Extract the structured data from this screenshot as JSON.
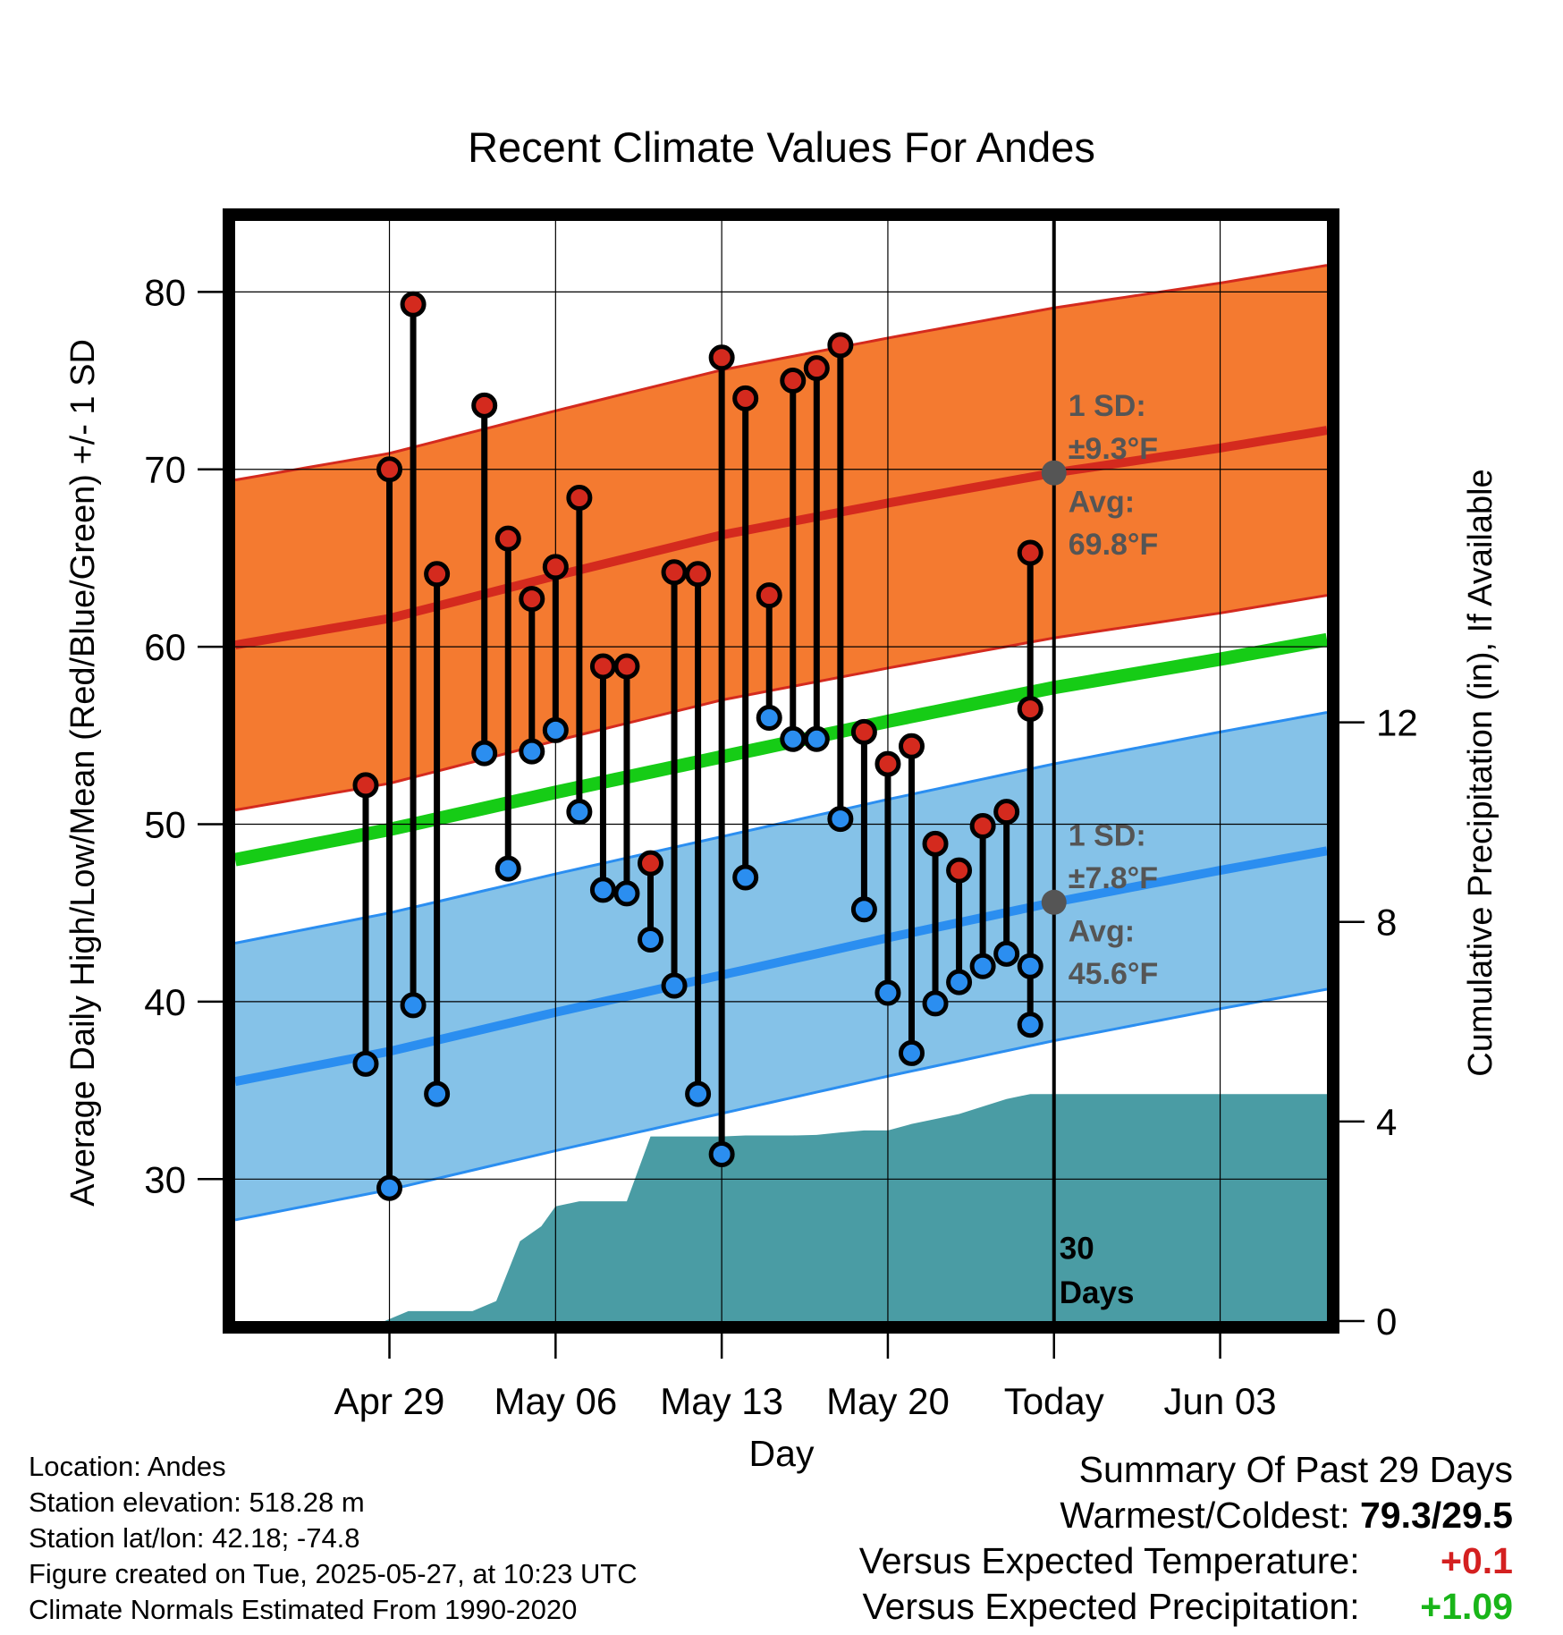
{
  "chart_data": {
    "type": "line",
    "title": "Recent Climate Values For Andes",
    "xlabel": "Day",
    "ylabel_left": "Average Daily High/Low/Mean (Red/Blue/Green) +/- 1 SD",
    "ylabel_right": "Cumulative Precipitation (in), If Available",
    "x_range_day_of_year": [
      112.5,
      158.5
    ],
    "ylim_left": [
      22,
      84
    ],
    "ylim_right": [
      0,
      22.05
    ],
    "x_ticks": [
      {
        "label": "Apr 29",
        "day": 119
      },
      {
        "label": "May 06",
        "day": 126
      },
      {
        "label": "May 13",
        "day": 133
      },
      {
        "label": "May 20",
        "day": 140
      },
      {
        "label": "Today",
        "day": 147
      },
      {
        "label": "Jun 03",
        "day": 154
      }
    ],
    "y_ticks_left": [
      30,
      40,
      50,
      60,
      70,
      80
    ],
    "y_ticks_right": [
      0,
      4,
      8,
      12
    ],
    "grid": true,
    "today_day": 147,
    "today_label_1": "30",
    "today_label_2": "Days",
    "normals": {
      "high_mean": {
        "day": [
          112.5,
          119,
          126,
          133,
          140,
          147,
          154,
          158.5
        ],
        "value": [
          60.1,
          61.6,
          64.0,
          66.3,
          68.1,
          69.8,
          71.2,
          72.2
        ]
      },
      "high_sd": 9.3,
      "low_mean": {
        "day": [
          112.5,
          119,
          126,
          133,
          140,
          147,
          154,
          158.5
        ],
        "value": [
          35.5,
          37.2,
          39.4,
          41.5,
          43.6,
          45.6,
          47.4,
          48.5
        ]
      },
      "low_sd": 7.8,
      "daily_mean": {
        "day": [
          112.5,
          119,
          126,
          133,
          140,
          147,
          154,
          158.5
        ],
        "value": [
          48.0,
          49.7,
          51.8,
          53.8,
          55.8,
          57.7,
          59.3,
          60.4
        ]
      }
    },
    "daily_observations": {
      "day": [
        118,
        119,
        120,
        121,
        123,
        124,
        125,
        126,
        127,
        128,
        129,
        130,
        131,
        132,
        133,
        134,
        135,
        136,
        137,
        138,
        139,
        140,
        141,
        142,
        143,
        144,
        145,
        146
      ],
      "high": [
        52.2,
        70.0,
        79.3,
        64.1,
        73.6,
        66.1,
        62.7,
        64.5,
        68.4,
        58.9,
        58.9,
        47.8,
        64.2,
        64.1,
        76.3,
        74.0,
        62.9,
        75.0,
        75.7,
        77.0,
        55.2,
        53.4,
        54.4,
        48.9,
        47.4,
        49.9,
        50.7,
        56.5
      ],
      "low": [
        36.5,
        29.5,
        39.8,
        34.8,
        54.0,
        47.5,
        54.1,
        55.3,
        50.7,
        46.3,
        46.1,
        43.5,
        40.9,
        34.8,
        31.4,
        47.0,
        56.0,
        54.8,
        54.8,
        50.3,
        45.2,
        40.5,
        37.1,
        39.9,
        41.1,
        42.0,
        42.7,
        42.0
      ]
    },
    "daily_observations_extra": {
      "day": 147,
      "high": 65.3,
      "low": 38.7
    },
    "cumulative_precip": {
      "day": [
        112.5,
        118.8,
        119.8,
        122.5,
        123.5,
        124.5,
        125.4,
        126.0,
        127.0,
        128.0,
        129.0,
        130.0,
        131.0,
        132.0,
        133.0,
        134.0,
        135.0,
        136.0,
        137.0,
        138.0,
        139.0,
        140.0,
        141.0,
        142.0,
        143.0,
        144.0,
        145.0,
        146.0,
        147.0,
        158.5
      ],
      "value": [
        0,
        0,
        0.2,
        0.2,
        0.4,
        1.6,
        1.9,
        2.3,
        2.4,
        2.4,
        2.4,
        3.7,
        3.7,
        3.7,
        3.7,
        3.72,
        3.72,
        3.72,
        3.73,
        3.78,
        3.82,
        3.82,
        3.95,
        4.05,
        4.15,
        4.3,
        4.45,
        4.55,
        4.55,
        4.55
      ]
    },
    "annotations": {
      "high_sd_label_1": "1 SD:",
      "high_sd_label_2": "±9.3°F",
      "high_avg_label_1": "Avg:",
      "high_avg_label_2": "69.8°F",
      "low_sd_label_1": "1 SD:",
      "low_sd_label_2": "±7.8°F",
      "low_avg_label_1": "Avg:",
      "low_avg_label_2": "45.6°F",
      "today_high_avg": 69.8,
      "today_low_avg": 45.6
    },
    "colors": {
      "high_band": "#f47a30",
      "high_line": "#d42a1e",
      "low_band": "#85c2e8",
      "low_line": "#2b8ef0",
      "mean_line": "#16cc16",
      "precip": "#4a9ca4",
      "high_dot": "#d42a1e",
      "low_dot": "#2b8ef0",
      "annotation_text": "#555555"
    }
  },
  "info": {
    "location": "Location: Andes",
    "elevation": "Station elevation: 518.28 m",
    "latlon": "Station lat/lon: 42.18; -74.8",
    "created": "Figure created on Tue, 2025-05-27, at 10:23 UTC",
    "normals": "Climate Normals Estimated From 1990-2020"
  },
  "summary": {
    "title": "Summary Of Past 29 Days",
    "warm_label": "Warmest/Coldest:",
    "warm_value": "79.3/29.5",
    "temp_label": "Versus Expected Temperature:",
    "temp_value": "+0.1",
    "prcp_label": "Versus Expected Precipitation:",
    "prcp_value": "+1.09"
  }
}
